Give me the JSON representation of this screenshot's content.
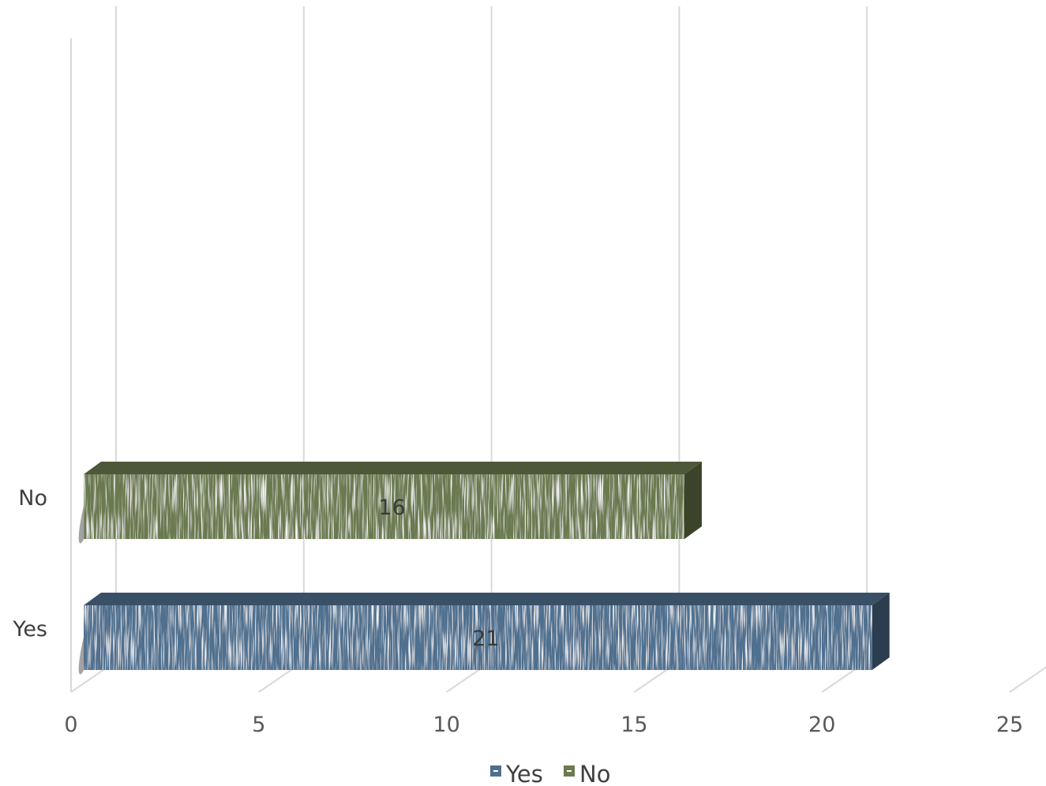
{
  "chart_data": {
    "type": "bar",
    "orientation": "horizontal",
    "style": "3d",
    "title": "",
    "xlabel": "",
    "ylabel": "",
    "categories": [
      "Yes",
      "No"
    ],
    "series": [
      {
        "name": "Yes",
        "category": "Yes",
        "value": 21,
        "color": "#4f6f8f",
        "label": "21"
      },
      {
        "name": "No",
        "category": "No",
        "value": 16,
        "color": "#6b7a4f",
        "label": "16"
      }
    ],
    "xlim": [
      0,
      25
    ],
    "x_ticks": [
      "0",
      "5",
      "10",
      "15",
      "20",
      "25"
    ],
    "grid": true,
    "legend": {
      "position": "bottom",
      "entries": [
        {
          "name": "Yes",
          "color": "#4f6f8f"
        },
        {
          "name": "No",
          "color": "#6b7a4f"
        }
      ]
    }
  }
}
